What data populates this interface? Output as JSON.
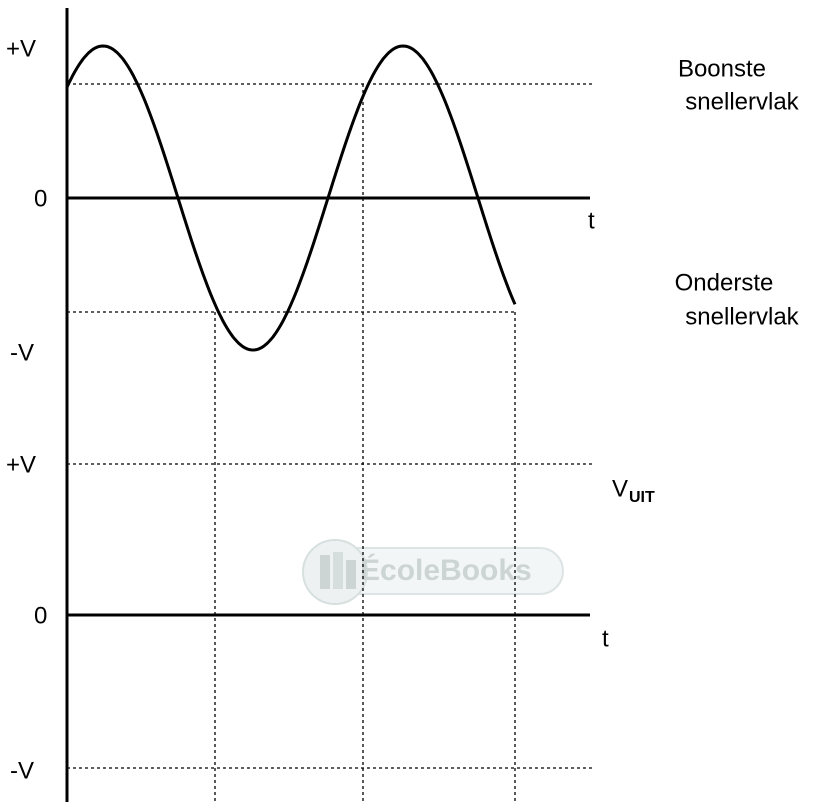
{
  "top_graph": {
    "y_labels": [
      "+V",
      "0",
      "-V"
    ],
    "x_label": "t",
    "upper_threshold": [
      "Boonste",
      "snellervlak"
    ],
    "lower_threshold": [
      "Onderste",
      "snellervlak"
    ]
  },
  "bottom_graph": {
    "y_labels": [
      "+V",
      "0",
      "-V"
    ],
    "x_label": "t",
    "output_label": "V",
    "output_subscript": "UIT"
  },
  "watermark": "ÉcoleBooks"
}
